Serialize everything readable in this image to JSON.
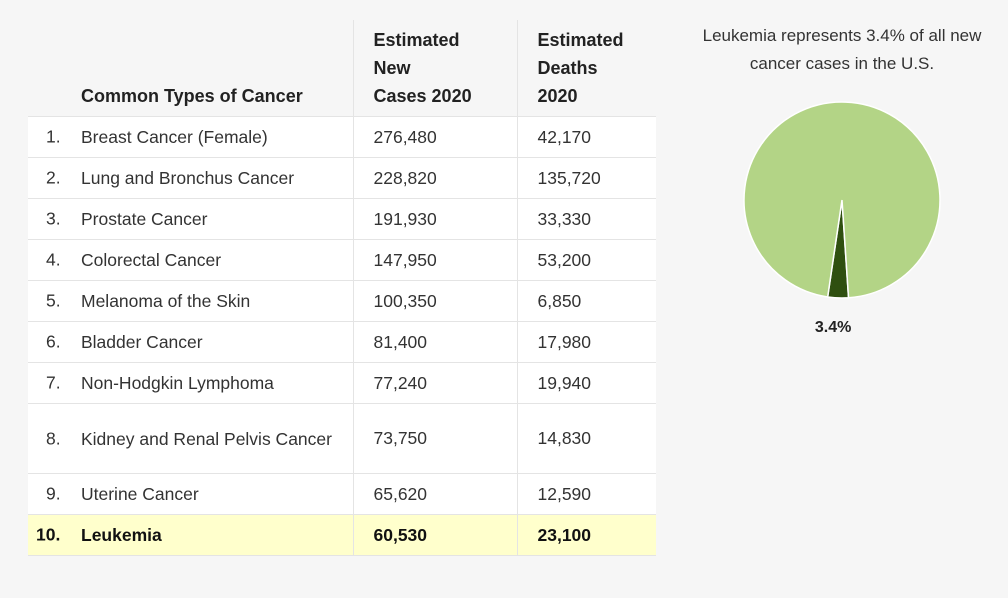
{
  "table": {
    "headers": {
      "name": "Common Types of Cancer",
      "new_lines": [
        "Estimated",
        "New",
        "Cases 2020"
      ],
      "death_lines": [
        "Estimated",
        "Deaths",
        "2020"
      ]
    },
    "rows": [
      {
        "rank": "1.",
        "name": "Breast Cancer (Female)",
        "new_cases": "276,480",
        "deaths": "42,170"
      },
      {
        "rank": "2.",
        "name": "Lung and Bronchus Cancer",
        "new_cases": "228,820",
        "deaths": "135,720"
      },
      {
        "rank": "3.",
        "name": "Prostate Cancer",
        "new_cases": "191,930",
        "deaths": "33,330"
      },
      {
        "rank": "4.",
        "name": "Colorectal Cancer",
        "new_cases": "147,950",
        "deaths": "53,200"
      },
      {
        "rank": "5.",
        "name": "Melanoma of the Skin",
        "new_cases": "100,350",
        "deaths": "6,850"
      },
      {
        "rank": "6.",
        "name": "Bladder Cancer",
        "new_cases": "81,400",
        "deaths": "17,980"
      },
      {
        "rank": "7.",
        "name": "Non-Hodgkin Lymphoma",
        "new_cases": "77,240",
        "deaths": "19,940"
      },
      {
        "rank": "8.",
        "name": "Kidney and Renal Pelvis Cancer",
        "new_cases": "73,750",
        "deaths": "14,830"
      },
      {
        "rank": "9.",
        "name": "Uterine Cancer",
        "new_cases": "65,620",
        "deaths": "12,590"
      },
      {
        "rank": "10.",
        "name": "Leukemia",
        "new_cases": "60,530",
        "deaths": "23,100"
      }
    ],
    "highlight_color": "#ffffcc"
  },
  "chart_data": {
    "type": "pie",
    "title": "Leukemia represents 3.4% of all new cancer cases in the U.S.",
    "slices": [
      {
        "value": 3.4,
        "label": "3.4%",
        "color": "#2f4f10"
      },
      {
        "value": 96.6,
        "label": "",
        "color": "#b3d486"
      }
    ]
  }
}
